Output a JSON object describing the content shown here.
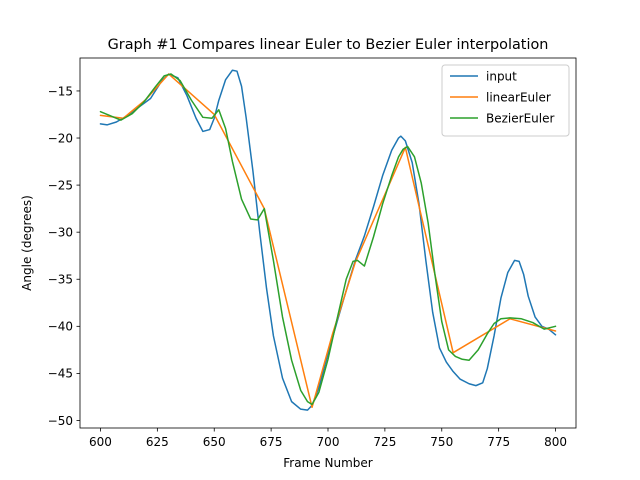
{
  "chart_data": {
    "type": "line",
    "title": "Graph #1 Compares linear Euler to Bezier Euler interpolation",
    "xlabel": "Frame Number",
    "ylabel": "Angle (degrees)",
    "xlim": [
      591,
      809
    ],
    "ylim": [
      -50.8,
      -11.5
    ],
    "xticks": [
      600,
      625,
      650,
      675,
      700,
      725,
      750,
      775,
      800
    ],
    "yticks": [
      -15,
      -20,
      -25,
      -30,
      -35,
      -40,
      -45,
      -50
    ],
    "grid": false,
    "legend_position": "top-right",
    "series": [
      {
        "name": "input",
        "color": "#1f77b4",
        "x": [
          600,
          603,
          607,
          612,
          617,
          622,
          627,
          630,
          634,
          638,
          642,
          645,
          648,
          650,
          652,
          655,
          658,
          660,
          662,
          664,
          667,
          670,
          673,
          676,
          680,
          684,
          688,
          691,
          693,
          696,
          700,
          704,
          708,
          712,
          716,
          720,
          724,
          728,
          731,
          732,
          734,
          737,
          740,
          743,
          746,
          749,
          752,
          755,
          758,
          762,
          765,
          768,
          770,
          773,
          776,
          779,
          782,
          784,
          786,
          788,
          791,
          794,
          797,
          800
        ],
        "y": [
          -18.5,
          -18.6,
          -18.3,
          -17.6,
          -16.7,
          -15.8,
          -13.9,
          -13.2,
          -13.6,
          -15.5,
          -17.9,
          -19.3,
          -19.1,
          -17.9,
          -16.0,
          -13.8,
          -12.8,
          -12.9,
          -14.5,
          -17.8,
          -23.5,
          -30.0,
          -36.0,
          -41.0,
          -45.5,
          -48.0,
          -48.8,
          -48.9,
          -48.4,
          -46.5,
          -42.9,
          -39.5,
          -36.2,
          -33.0,
          -30.4,
          -27.3,
          -24.0,
          -21.3,
          -20.0,
          -19.8,
          -20.3,
          -22.6,
          -27.0,
          -33.0,
          -38.5,
          -42.3,
          -43.8,
          -44.8,
          -45.6,
          -46.1,
          -46.3,
          -46.0,
          -44.5,
          -41.0,
          -37.0,
          -34.3,
          -33.0,
          -33.1,
          -34.5,
          -36.8,
          -39.0,
          -40.0,
          -40.3,
          -40.9
        ]
      },
      {
        "name": "linearEuler",
        "color": "#ff7f0e",
        "x": [
          600,
          610,
          620,
          630,
          650,
          672,
          693,
          702,
          712,
          734,
          755,
          780,
          800
        ],
        "y": [
          -17.6,
          -17.9,
          -15.9,
          -13.2,
          -17.5,
          -27.5,
          -48.6,
          -40.8,
          -33.2,
          -21.0,
          -42.8,
          -39.2,
          -40.5
        ]
      },
      {
        "name": "BezierEuler",
        "color": "#2ca02c",
        "x": [
          600,
          604,
          609,
          614,
          619,
          624,
          628,
          631,
          635,
          640,
          645,
          649,
          652,
          655,
          658,
          662,
          666,
          669,
          672,
          676,
          680,
          684,
          688,
          691,
          693,
          696,
          700,
          704,
          708,
          711,
          713,
          716,
          720,
          724,
          728,
          731,
          733,
          735,
          738,
          741,
          744,
          747,
          750,
          753,
          756,
          759,
          762,
          766,
          770,
          773,
          776,
          780,
          785,
          790,
          795,
          800
        ],
        "y": [
          -17.2,
          -17.6,
          -18.1,
          -17.4,
          -16.2,
          -14.6,
          -13.4,
          -13.2,
          -13.9,
          -16.0,
          -17.8,
          -17.9,
          -17.0,
          -19.0,
          -22.5,
          -26.5,
          -28.6,
          -28.7,
          -27.5,
          -33.0,
          -39.0,
          -43.6,
          -46.8,
          -48.0,
          -48.3,
          -47.0,
          -43.5,
          -39.2,
          -35.0,
          -33.1,
          -33.0,
          -33.6,
          -30.5,
          -27.0,
          -24.0,
          -22.0,
          -21.2,
          -20.9,
          -22.0,
          -24.8,
          -29.0,
          -34.5,
          -39.5,
          -42.5,
          -43.2,
          -43.5,
          -43.6,
          -42.5,
          -40.8,
          -39.7,
          -39.2,
          -39.1,
          -39.2,
          -39.6,
          -40.3,
          -40.0
        ]
      }
    ]
  }
}
